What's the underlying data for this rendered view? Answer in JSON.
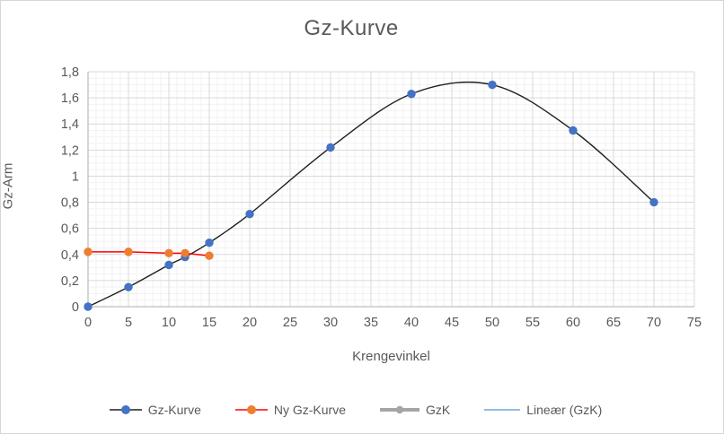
{
  "window": {
    "background": "#ffffff",
    "border_color": "#d6d6d6"
  },
  "chart_data": {
    "type": "line",
    "title": "Gz-Kurve",
    "xlabel": "Krengevinkel",
    "ylabel": "Gz-Arm",
    "xlim": [
      0,
      75
    ],
    "ylim": [
      0,
      1.8
    ],
    "x_major_step": 5,
    "x_minor_step": 1,
    "y_major_step": 0.2,
    "y_minor_step": 0.05,
    "x_tick_labels": [
      "0",
      "5",
      "10",
      "15",
      "20",
      "25",
      "30",
      "35",
      "40",
      "45",
      "50",
      "55",
      "60",
      "65",
      "70",
      "75"
    ],
    "y_tick_labels": [
      "0",
      "0,2",
      "0,4",
      "0,6",
      "0,8",
      "1",
      "1,2",
      "1,4",
      "1,6",
      "1,8"
    ],
    "grid_major_color": "#d9d9d9",
    "grid_minor_color": "#f2f2f2",
    "axis_line_color": "#bfbfbf",
    "text_color": "#595959",
    "legend_position": "bottom",
    "series": [
      {
        "name": "Gz-Kurve",
        "x": [
          0,
          5,
          10,
          12,
          15,
          20,
          30,
          40,
          50,
          60,
          70
        ],
        "y": [
          0,
          0.15,
          0.32,
          0.38,
          0.49,
          0.71,
          1.22,
          1.63,
          1.7,
          1.35,
          0.8
        ],
        "line_color": "#1f1f1f",
        "line_width": 1.4,
        "marker_color": "#4472c4",
        "marker_radius": 4.7,
        "smooth": true,
        "legend_swatch": "line-marker"
      },
      {
        "name": "Ny Gz-Kurve",
        "x": [
          0,
          5,
          10,
          12,
          15
        ],
        "y": [
          0.42,
          0.42,
          0.41,
          0.41,
          0.39
        ],
        "line_color": "#ff0000",
        "line_width": 1.5,
        "marker_color": "#ed7d31",
        "marker_radius": 4.7,
        "smooth": false,
        "legend_swatch": "line-marker"
      },
      {
        "name": "GzK",
        "x": [],
        "y": [],
        "line_color": "#a5a5a5",
        "line_width": 4,
        "marker_color": "#a5a5a5",
        "marker_radius": 4,
        "smooth": false,
        "legend_swatch": "thick-line-marker"
      },
      {
        "name": "Lineær (GzK)",
        "x": [],
        "y": [],
        "line_color": "#6ea6d8",
        "line_width": 1.3,
        "marker_color": null,
        "marker_radius": 0,
        "smooth": false,
        "legend_swatch": "plain-line"
      }
    ]
  }
}
